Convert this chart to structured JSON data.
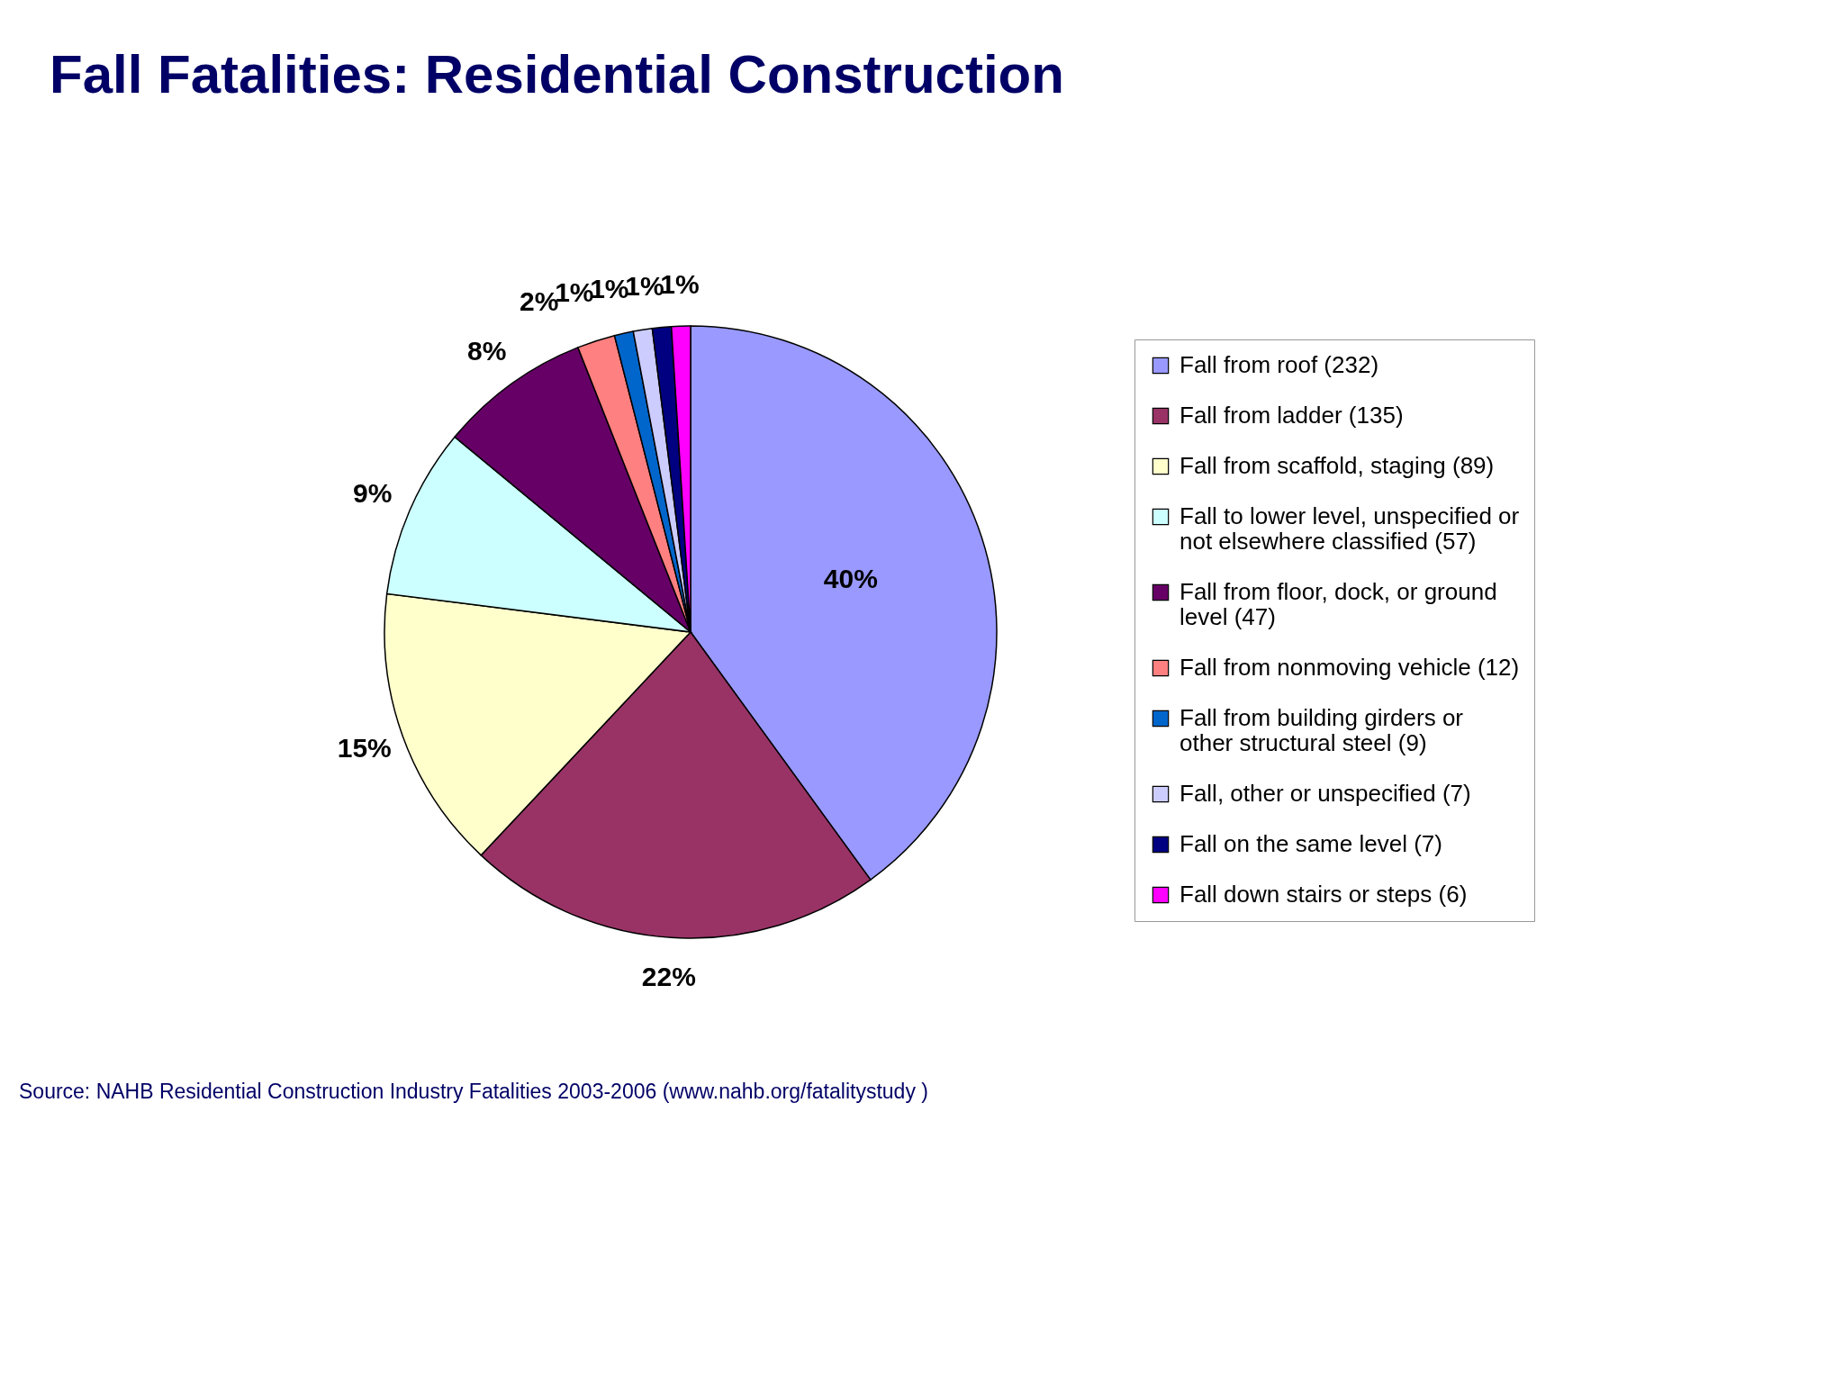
{
  "chart_data": {
    "type": "pie",
    "title": "Fall Fatalities:  Residential Construction",
    "categories": [
      "Fall from roof (232)",
      "Fall from ladder (135)",
      "Fall from scaffold, staging (89)",
      "Fall to lower level, unspecified or not elsewhere classified (57)",
      "Fall from floor, dock, or ground level (47)",
      "Fall from nonmoving vehicle (12)",
      "Fall from building girders or other structural steel (9)",
      "Fall, other or unspecified (7)",
      "Fall on the same level (7)",
      "Fall down stairs or steps (6)"
    ],
    "values": [
      40,
      22,
      15,
      9,
      8,
      2,
      1,
      1,
      1,
      1
    ],
    "colors": [
      "#9999ff",
      "#993366",
      "#ffffcc",
      "#ccffff",
      "#660066",
      "#ff8080",
      "#0066cc",
      "#ccccff",
      "#000080",
      "#ff00ff"
    ],
    "value_labels": [
      "40%",
      "22%",
      "15%",
      "9%",
      "8%",
      "2%",
      "1%",
      "1%",
      "1%",
      "1%"
    ],
    "legend": "right",
    "annotations": [
      "Source: NAHB Residential Construction Industry Fatalities 2003-2006 (www.nahb.org/fatalitystudy )"
    ]
  }
}
